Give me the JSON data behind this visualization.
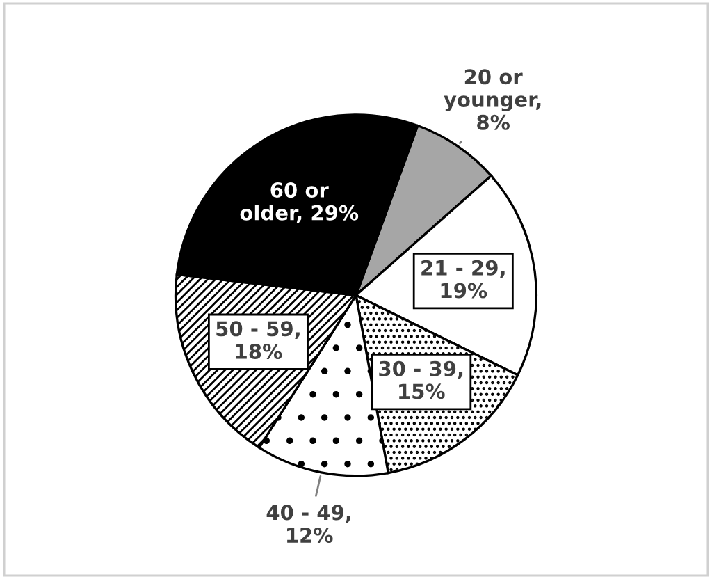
{
  "chart_data": {
    "type": "pie",
    "categories": [
      "20 or younger",
      "21 - 29",
      "30 - 39",
      "40 - 49",
      "50 - 59",
      "60 or older"
    ],
    "values": [
      8,
      19,
      15,
      12,
      18,
      29
    ],
    "value_labels": [
      ", 8%",
      ", 19%",
      ", 15%",
      ", 12%",
      ", 18%",
      ", 29%"
    ],
    "colors": [
      "#a6a6a6",
      "#ffffff",
      "#000000",
      "#000000",
      "#000000",
      "#000000"
    ],
    "legend": false
  }
}
